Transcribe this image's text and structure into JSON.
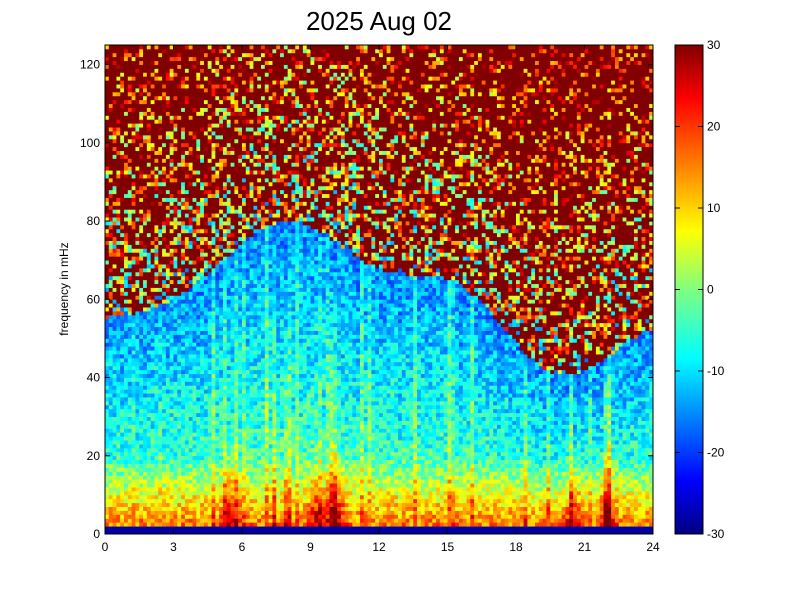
{
  "chart_data": {
    "type": "heatmap",
    "title": "2025 Aug 02",
    "xlabel": "",
    "ylabel": "frequency in mHz",
    "xlim": [
      0,
      24
    ],
    "ylim": [
      0,
      125
    ],
    "x_ticks": [
      "0",
      "3",
      "6",
      "9",
      "12",
      "15",
      "18",
      "21",
      "24"
    ],
    "y_ticks": [
      "0",
      "20",
      "40",
      "60",
      "80",
      "100",
      "120"
    ],
    "colorbar": {
      "colormap": "jet",
      "range": [
        -30,
        30
      ],
      "ticks": [
        "30",
        "20",
        "10",
        "0",
        "-10",
        "-20",
        "-30"
      ]
    },
    "grid_resolution": {
      "time_bins": 144,
      "freq_bins": 125
    },
    "features": {
      "background_high_freq_level": 28,
      "low_freq_band_level": 12,
      "bright_burst_times_hours": [
        5.5,
        9.3,
        10.2,
        20.5,
        22.0
      ],
      "bright_streak_times_hours": [
        7.4,
        8.0,
        10.0,
        22.0
      ]
    }
  }
}
